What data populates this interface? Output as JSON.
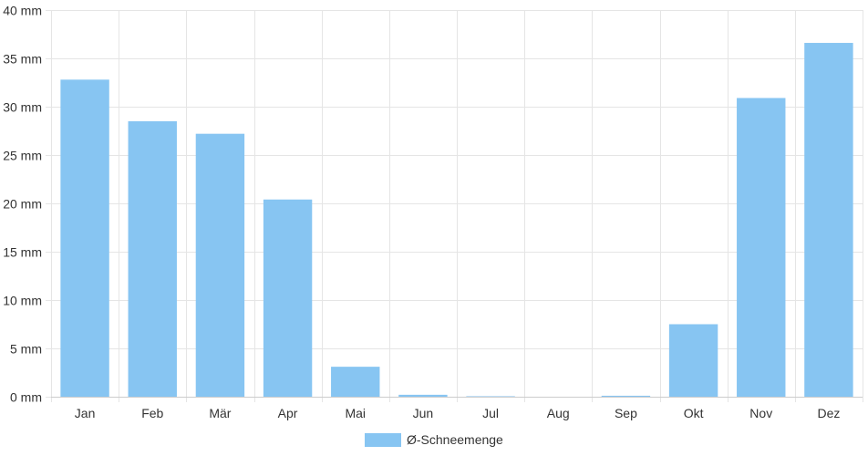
{
  "chart_data": {
    "type": "bar",
    "categories": [
      "Jan",
      "Feb",
      "Mär",
      "Apr",
      "Mai",
      "Jun",
      "Jul",
      "Aug",
      "Sep",
      "Okt",
      "Nov",
      "Dez"
    ],
    "series": [
      {
        "name": "Ø-Schneemenge",
        "color": "#87c5f2",
        "values": [
          32.8,
          28.5,
          27.2,
          20.4,
          3.1,
          0.2,
          0.05,
          0.0,
          0.1,
          7.5,
          30.9,
          36.6
        ]
      }
    ],
    "y_unit": "mm",
    "ylim": [
      0,
      40
    ],
    "y_ticks": [
      0,
      5,
      10,
      15,
      20,
      25,
      30,
      35,
      40
    ],
    "grid": true,
    "legend_position": "bottom"
  }
}
